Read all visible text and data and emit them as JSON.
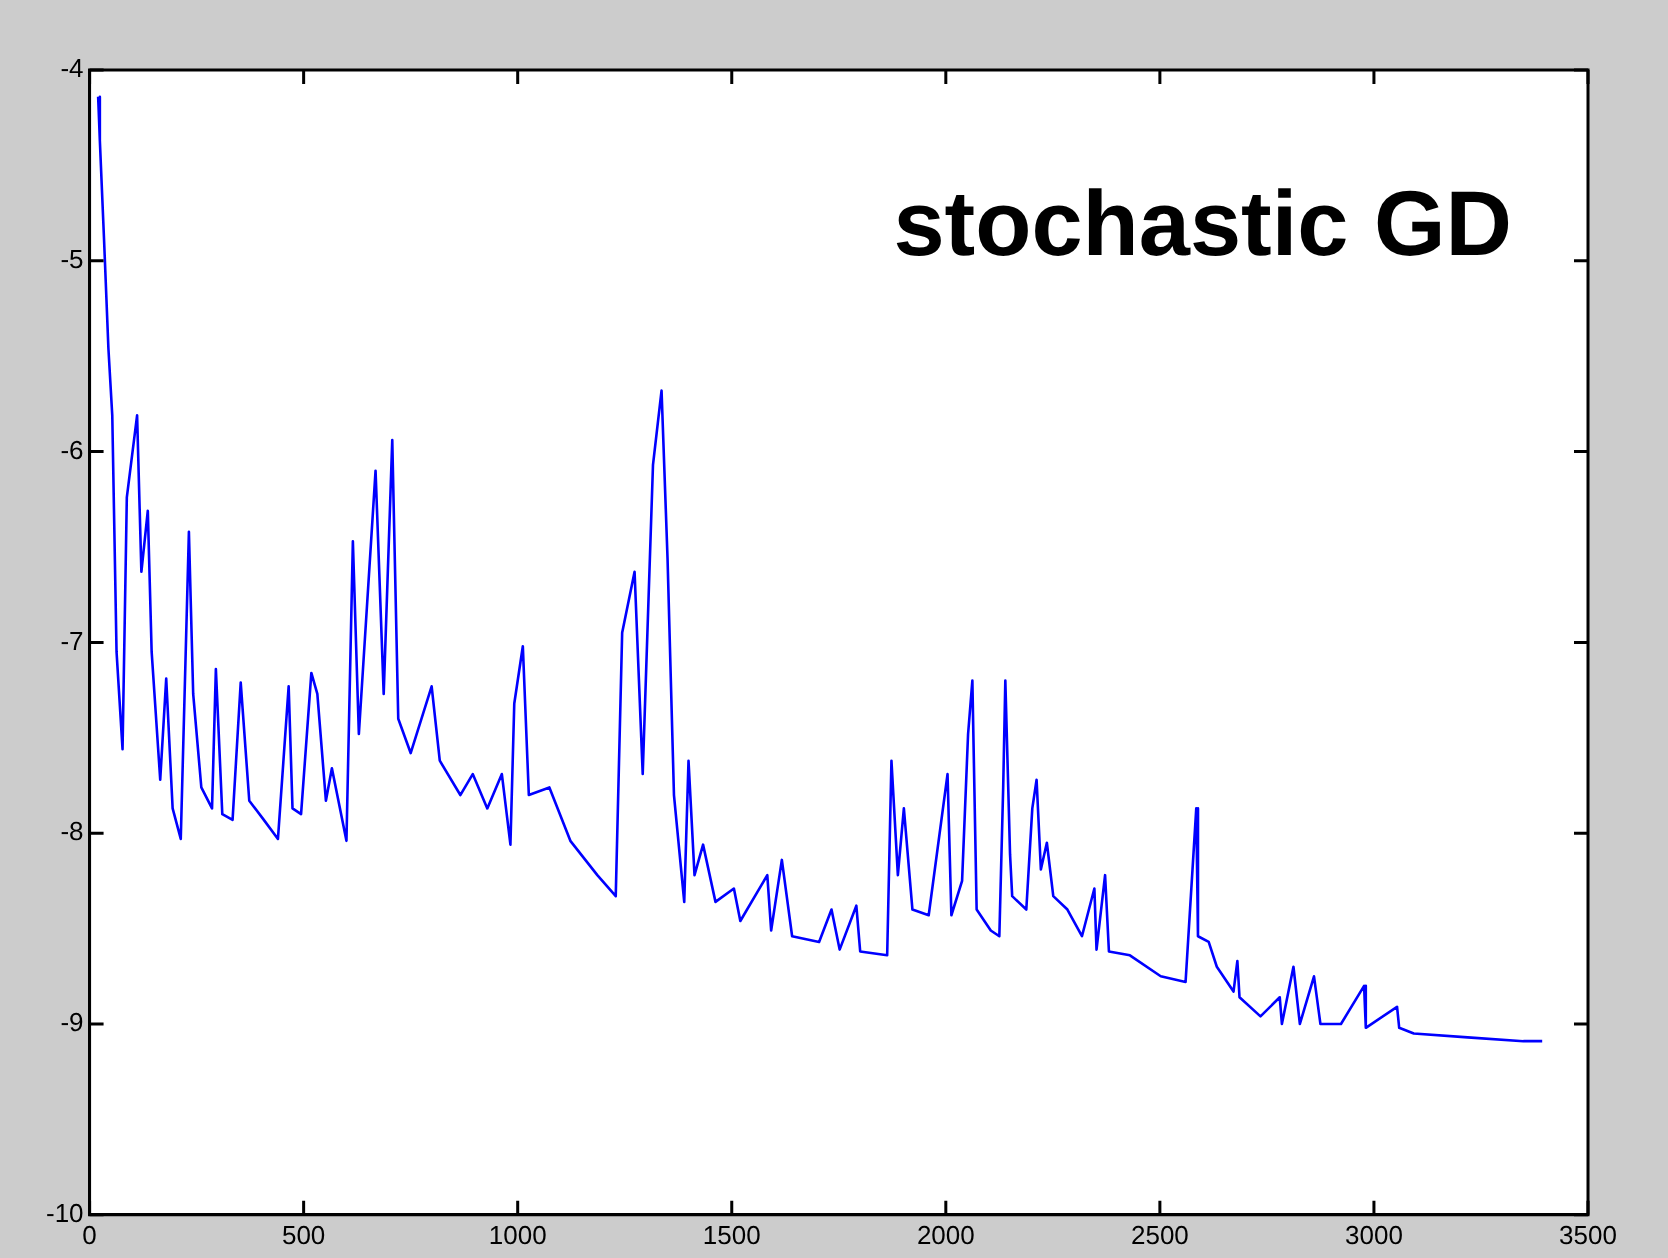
{
  "chart_data": {
    "type": "line",
    "annotations": [
      "stochastic GD"
    ],
    "xlim": [
      0,
      3500
    ],
    "xticks": [
      0,
      500,
      1000,
      1500,
      2000,
      2500,
      3000,
      3500
    ],
    "ylim": [
      -10,
      -4
    ],
    "yticks": [
      -10,
      -9,
      -8,
      -7,
      -6,
      -5,
      -4
    ],
    "marker": "none",
    "legend": false,
    "series": [
      {
        "color": "#0000ff",
        "x": [
          20,
          24,
          34,
          44,
          53,
          63,
          77,
          87,
          111,
          121,
          136,
          145,
          165,
          179,
          194,
          213,
          232,
          242,
          261,
          286,
          295,
          310,
          334,
          353,
          373,
          407,
          440,
          465,
          474,
          494,
          518,
          532,
          552,
          566,
          600,
          615,
          629,
          668,
          687,
          707,
          721,
          750,
          799,
          818,
          866,
          895,
          929,
          963,
          983,
          992,
          1012,
          1026,
          1074,
          1123,
          1186,
          1229,
          1244,
          1273,
          1292,
          1316,
          1336,
          1350,
          1365,
          1389,
          1399,
          1413,
          1433,
          1462,
          1505,
          1520,
          1583,
          1592,
          1617,
          1641,
          1704,
          1733,
          1752,
          1791,
          1800,
          1863,
          1873,
          1888,
          1902,
          1922,
          1960,
          2004,
          2013,
          2038,
          2052,
          2062,
          2072,
          2105,
          2125,
          2134,
          2139,
          2150,
          2155,
          2188,
          2202,
          2212,
          2222,
          2236,
          2251,
          2284,
          2318,
          2347,
          2352,
          2372,
          2381,
          2430,
          2502,
          2560,
          2585,
          2589,
          2614,
          2633,
          2672,
          2681,
          2686,
          2735,
          2780,
          2785,
          2812,
          2827,
          2860,
          2875,
          2923,
          2977,
          2981,
          3054,
          3059,
          3093,
          3219,
          3349,
          3393
        ],
        "values": [
          -4.14,
          -4.37,
          -4.9,
          -5.46,
          -5.81,
          -7.05,
          -7.56,
          -6.24,
          -5.81,
          -6.63,
          -6.31,
          -7.05,
          -7.72,
          -7.19,
          -7.87,
          -8.03,
          -6.42,
          -7.27,
          -7.76,
          -7.87,
          -7.14,
          -7.9,
          -7.93,
          -7.21,
          -7.83,
          -7.93,
          -8.03,
          -7.23,
          -7.87,
          -7.9,
          -7.16,
          -7.27,
          -7.83,
          -7.66,
          -8.04,
          -6.47,
          -7.48,
          -6.1,
          -7.27,
          -5.94,
          -7.4,
          -7.58,
          -7.23,
          -7.62,
          -7.8,
          -7.69,
          -7.87,
          -7.69,
          -8.06,
          -7.32,
          -7.02,
          -7.8,
          -7.76,
          -8.04,
          -8.22,
          -8.33,
          -6.95,
          -6.63,
          -7.69,
          -6.07,
          -5.68,
          -6.56,
          -7.8,
          -8.36,
          -7.62,
          -8.22,
          -8.06,
          -8.36,
          -8.29,
          -8.46,
          -8.22,
          -8.51,
          -8.14,
          -8.54,
          -8.57,
          -8.4,
          -8.61,
          -8.38,
          -8.62,
          -8.64,
          -7.62,
          -8.22,
          -7.87,
          -8.4,
          -8.43,
          -7.69,
          -8.43,
          -8.25,
          -7.48,
          -7.2,
          -8.4,
          -8.51,
          -8.54,
          -7.76,
          -7.2,
          -8.11,
          -8.33,
          -8.4,
          -7.87,
          -7.72,
          -8.19,
          -8.05,
          -8.33,
          -8.4,
          -8.54,
          -8.29,
          -8.61,
          -8.22,
          -8.62,
          -8.64,
          -8.75,
          -8.78,
          -7.87,
          -8.54,
          -8.57,
          -8.7,
          -8.83,
          -8.67,
          -8.86,
          -8.96,
          -8.86,
          -9,
          -8.7,
          -9,
          -8.75,
          -9,
          -9,
          -8.8,
          -9.02,
          -8.91,
          -9.02,
          -9.05,
          -9.07,
          -9.09,
          -9.09
        ]
      }
    ]
  }
}
